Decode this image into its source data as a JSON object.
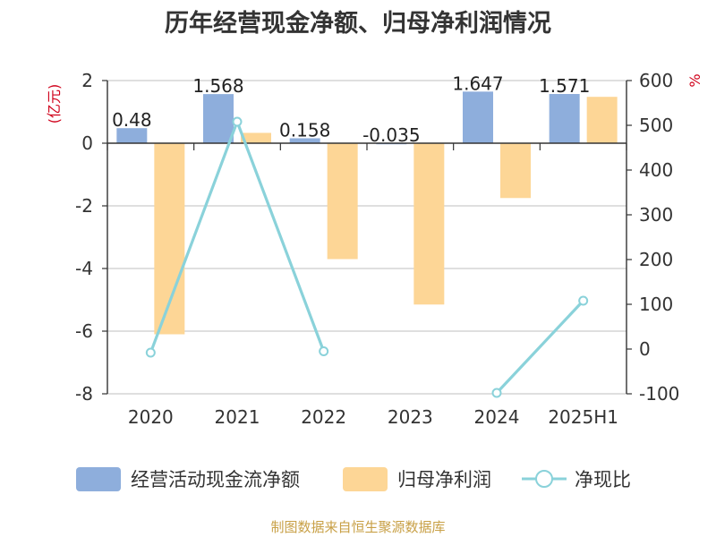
{
  "chart_data": {
    "type": "bar",
    "title": "历年经营现金净额、归母净利润情况",
    "categories": [
      "2020",
      "2021",
      "2022",
      "2023",
      "2024",
      "2025H1"
    ],
    "left_axis": {
      "unit": "(亿元)",
      "range": [
        -8,
        2
      ],
      "ticks": [
        "2",
        "0",
        "-2",
        "-4",
        "-6",
        "-8"
      ]
    },
    "right_axis": {
      "unit": "%",
      "range": [
        -100,
        600
      ],
      "ticks": [
        "600",
        "500",
        "400",
        "300",
        "200",
        "100",
        "0",
        "-100"
      ]
    },
    "grid": true,
    "legend_position": "bottom",
    "series": [
      {
        "name": "经营活动现金流净额",
        "kind": "bar",
        "axis": "left",
        "color": "#8eaedc",
        "values": [
          0.48,
          1.568,
          0.158,
          -0.035,
          1.647,
          1.571
        ],
        "labels": [
          "0.48",
          "1.568",
          "0.158",
          "-0.035",
          "1.647",
          "1.571"
        ]
      },
      {
        "name": "归母净利润",
        "kind": "bar",
        "axis": "left",
        "color": "#fdd696",
        "values": [
          -6.1,
          0.33,
          -3.7,
          -5.15,
          -1.75,
          1.48
        ]
      },
      {
        "name": "净现比",
        "kind": "line",
        "axis": "right",
        "color": "#8ad2da",
        "values": [
          -8,
          508,
          -5,
          null,
          -98,
          108
        ]
      }
    ]
  },
  "footer": {
    "source": "制图数据来自恒生聚源数据库"
  }
}
